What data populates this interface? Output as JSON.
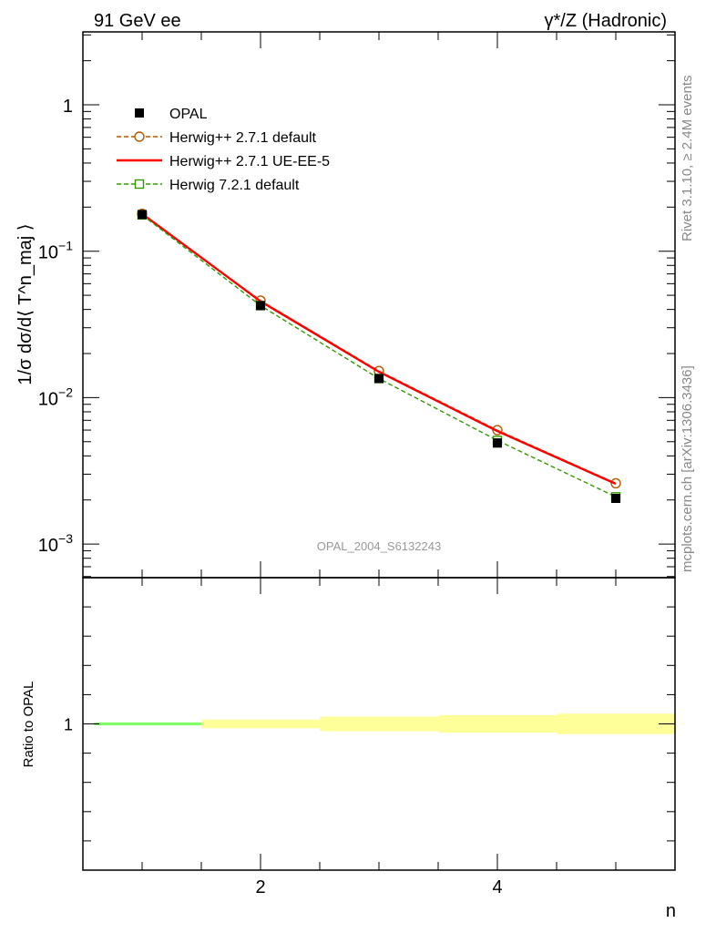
{
  "header": {
    "left_title": "91 GeV ee",
    "right_title": "γ*/Z (Hadronic)"
  },
  "watermark": "OPAL_2004_S6132243",
  "side_labels": {
    "rivet": "Rivet 3.1.10, ≥ 2.4M events",
    "mcplots": "mcplots.cern.ch [arXiv:1306.3436]"
  },
  "chart_data": [
    {
      "type": "line",
      "ylabel": "1/σ dσ/d⟨ T^n_maj ⟩",
      "xlabel": "n",
      "xlim": [
        0.5,
        5.5
      ],
      "ylim": [
        0.0006,
        3.3
      ],
      "yscale": "log",
      "yticks": [
        {
          "value": 0.001,
          "base": "10",
          "exp": "−3"
        },
        {
          "value": 0.01,
          "base": "10",
          "exp": "−2"
        },
        {
          "value": 0.1,
          "base": "10",
          "exp": "−1"
        },
        {
          "value": 1,
          "base": "1",
          "exp": ""
        }
      ],
      "legend_position": "top-left",
      "series": [
        {
          "name": "OPAL",
          "style": "data",
          "color": "#000000",
          "x": [
            1,
            2,
            3,
            4,
            5
          ],
          "y": [
            0.178,
            0.0425,
            0.0135,
            0.0049,
            0.00205
          ]
        },
        {
          "name": "Herwig++ 2.7.1 default",
          "style": "dashed-circle",
          "color": "#b35900",
          "x": [
            1,
            2,
            3,
            4,
            5
          ],
          "y": [
            0.18,
            0.046,
            0.0152,
            0.006,
            0.0026
          ]
        },
        {
          "name": "Herwig++ 2.7.1 UE-EE-5",
          "style": "solid",
          "color": "#ff0000",
          "x": [
            1,
            2,
            3,
            4,
            5
          ],
          "y": [
            0.18,
            0.0455,
            0.015,
            0.0059,
            0.00258
          ]
        },
        {
          "name": "Herwig 7.2.1 default",
          "style": "dashed-square",
          "color": "#339900",
          "x": [
            1,
            2,
            3,
            4,
            5
          ],
          "y": [
            0.177,
            0.0425,
            0.0135,
            0.0051,
            0.0021
          ]
        }
      ]
    },
    {
      "type": "band",
      "ylabel": "Ratio to OPAL",
      "xlabel": "n",
      "xlim": [
        0.5,
        5.5
      ],
      "ylim": [
        0.5,
        1.5
      ],
      "xticks": [
        2,
        4
      ],
      "yticks": [
        1
      ],
      "bands": [
        {
          "label": "stat",
          "color": "#80ff66",
          "x": [
            [
              0.5,
              1.5
            ],
            [
              1.5,
              2.5
            ],
            [
              2.5,
              3.5
            ],
            [
              3.5,
              4.5
            ],
            [
              4.5,
              5.5
            ]
          ],
          "low": [
            0.995,
            0.995,
            0.995,
            0.995,
            0.995
          ],
          "high": [
            1.005,
            1.005,
            1.005,
            1.005,
            1.005
          ]
        },
        {
          "label": "total",
          "color": "#ffff99",
          "x": [
            [
              0.5,
              1.5
            ],
            [
              1.5,
              2.5
            ],
            [
              2.5,
              3.5
            ],
            [
              3.5,
              4.5
            ],
            [
              4.5,
              5.5
            ]
          ],
          "low": [
            0.995,
            0.985,
            0.975,
            0.97,
            0.965
          ],
          "high": [
            1.005,
            1.015,
            1.025,
            1.03,
            1.035
          ]
        }
      ]
    }
  ]
}
